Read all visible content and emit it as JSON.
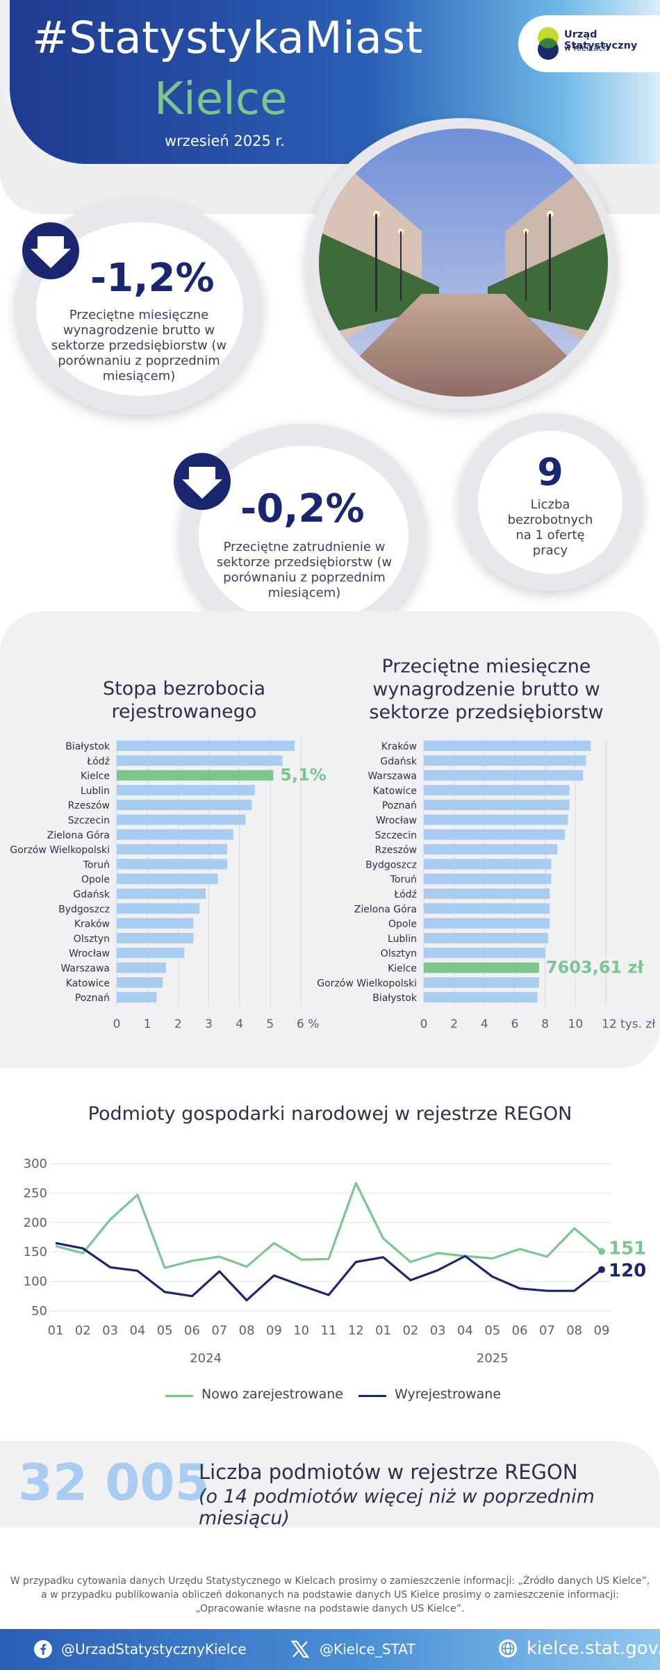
{
  "header": {
    "hashtag": "#StatystykaMiast",
    "city": "Kielce",
    "date": "wrzesień 2025 r.",
    "logo_line1": "Urząd Statystyczny",
    "logo_line2": "w Kielcach",
    "colors": {
      "navy": "#1a2670",
      "green": "#7cc58e",
      "blue": "#2a5fb5"
    }
  },
  "kpi": {
    "wage": {
      "value": "-1,2%",
      "desc": "Przeciętne miesięczne wynagrodzenie brutto w sektorze przedsiębiorstw (w porównaniu z poprzednim miesiącem)",
      "icon": "arrow-down-icon"
    },
    "employment": {
      "value": "-0,2%",
      "desc": "Przeciętne zatrudnienie w sektorze przedsiębiorstw (w porównaniu z poprzednim miesiącem)",
      "icon": "arrow-down-icon"
    },
    "unemployed": {
      "value": "9",
      "desc": "Liczba bezrobotnych na 1 ofertę pracy"
    }
  },
  "chart_data": [
    {
      "type": "bar",
      "orientation": "horizontal",
      "title": "Stopa bezrobocia rejestrowanego",
      "unit": "%",
      "categories": [
        "Białystok",
        "Łódź",
        "Kielce",
        "Lublin",
        "Rzeszów",
        "Szczecin",
        "Zielona Góra",
        "Gorzów Wielkopolski",
        "Toruń",
        "Opole",
        "Gdańsk",
        "Bydgoszcz",
        "Kraków",
        "Olsztyn",
        "Wrocław",
        "Warszawa",
        "Katowice",
        "Poznań"
      ],
      "values": [
        5.8,
        5.4,
        5.1,
        4.5,
        4.4,
        4.2,
        3.8,
        3.6,
        3.6,
        3.3,
        2.9,
        2.7,
        2.5,
        2.5,
        2.2,
        1.6,
        1.5,
        1.3
      ],
      "highlight": {
        "category": "Kielce",
        "label": "5,1%"
      },
      "xticks": [
        "0",
        "1",
        "2",
        "3",
        "4",
        "5",
        "6 %"
      ],
      "xlim": [
        0,
        6
      ],
      "bar_color": "#a8cdf0",
      "highlight_color": "#7cc58e"
    },
    {
      "type": "bar",
      "orientation": "horizontal",
      "title": "Przeciętne miesięczne wynagrodzenie brutto w sektorze przedsiębiorstw",
      "unit": "tys. zł",
      "categories": [
        "Kraków",
        "Gdańsk",
        "Warszawa",
        "Katowice",
        "Poznań",
        "Wrocław",
        "Szczecin",
        "Rzeszów",
        "Bydgoszcz",
        "Toruń",
        "Łódź",
        "Zielona Góra",
        "Opole",
        "Lublin",
        "Olsztyn",
        "Kielce",
        "Gorzów Wielkopolski",
        "Białystok"
      ],
      "values": [
        11.0,
        10.7,
        10.5,
        9.6,
        9.6,
        9.5,
        9.3,
        8.8,
        8.4,
        8.4,
        8.3,
        8.3,
        8.3,
        8.2,
        8.0,
        7.6,
        7.6,
        7.5
      ],
      "highlight": {
        "category": "Kielce",
        "label": "7603,61 zł"
      },
      "xticks": [
        "0",
        "2",
        "4",
        "6",
        "8",
        "10",
        "12 tys. zł"
      ],
      "xlim": [
        0,
        12
      ],
      "bar_color": "#a8cdf0",
      "highlight_color": "#7cc58e"
    },
    {
      "type": "line",
      "title": "Podmioty gospodarki narodowej w rejestrze REGON",
      "x": [
        "01",
        "02",
        "03",
        "04",
        "05",
        "06",
        "07",
        "08",
        "09",
        "10",
        "11",
        "12",
        "01",
        "02",
        "03",
        "04",
        "05",
        "06",
        "07",
        "08",
        "09"
      ],
      "year_labels": [
        "2024",
        "2025"
      ],
      "ylim": [
        50,
        300
      ],
      "yticks": [
        "300",
        "250",
        "200",
        "150",
        "100",
        "50"
      ],
      "series": [
        {
          "name": "Nowo zarejestrowane",
          "color": "#7cc58e",
          "values": [
            160,
            148,
            205,
            247,
            123,
            135,
            142,
            125,
            165,
            137,
            138,
            267,
            173,
            133,
            148,
            143,
            139,
            155,
            142,
            190,
            151
          ],
          "end_label": "151"
        },
        {
          "name": "Wyrejestrowane",
          "color": "#1a2670",
          "values": [
            165,
            156,
            124,
            118,
            82,
            75,
            117,
            68,
            110,
            93,
            77,
            133,
            141,
            102,
            119,
            143,
            108,
            88,
            84,
            84,
            120
          ],
          "end_label": "120"
        }
      ]
    }
  ],
  "regon": {
    "total": "32 005",
    "label": "Liczba podmiotów w rejestrze REGON",
    "sub": "(o 14 podmiotów więcej niż w poprzednim miesiącu)"
  },
  "disclaimer": {
    "line1": "W przypadku cytowania danych Urzędu Statystycznego w Kielcach prosimy o zamieszczenie informacji: „Źródło danych US Kielce”,",
    "line2": "a w przypadku publikowania obliczeń dokonanych na podstawie danych US Kielce prosimy o zamieszczenie informacji:",
    "line3": "„Opracowanie własne na podstawie danych US Kielce”."
  },
  "footer": {
    "facebook": "@UrzadStatystycznyKielce",
    "x": "@Kielce_STAT",
    "web": "kielce.stat.gov.pl",
    "icons": [
      "facebook-icon",
      "x-icon",
      "globe-icon"
    ]
  }
}
